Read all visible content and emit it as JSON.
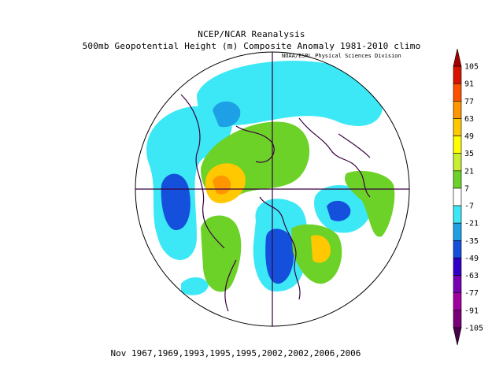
{
  "title_line1": "NCEP/NCAR Reanalysis",
  "title_line2": "500mb Geopotential Height (m) Composite Anomaly 1981-2010 climo",
  "credit": "NOAA/ESRL Physical Sciences Division",
  "footer": "Nov 1967,1969,1993,1995,1995,2002,2002,2006,2006",
  "colorbar": {
    "ticks": [
      "105",
      "91",
      "77",
      "63",
      "49",
      "35",
      "21",
      "7",
      "-7",
      "-21",
      "-35",
      "-49",
      "-63",
      "-77",
      "-91",
      "-105"
    ],
    "colors": [
      "#a40000",
      "#d81400",
      "#ff5000",
      "#ff9600",
      "#ffc800",
      "#ffff00",
      "#c8ee32",
      "#6cd228",
      "#ffffff",
      "#3ce8f5",
      "#1ea0e6",
      "#1450dc",
      "#3000c8",
      "#7800b4",
      "#a000a0",
      "#780078",
      "#4a004a"
    ]
  },
  "anomaly_regions": [
    {
      "label": "-",
      "color": "#3ce8f5"
    },
    {
      "label": "+",
      "color": "#6cd228"
    }
  ]
}
